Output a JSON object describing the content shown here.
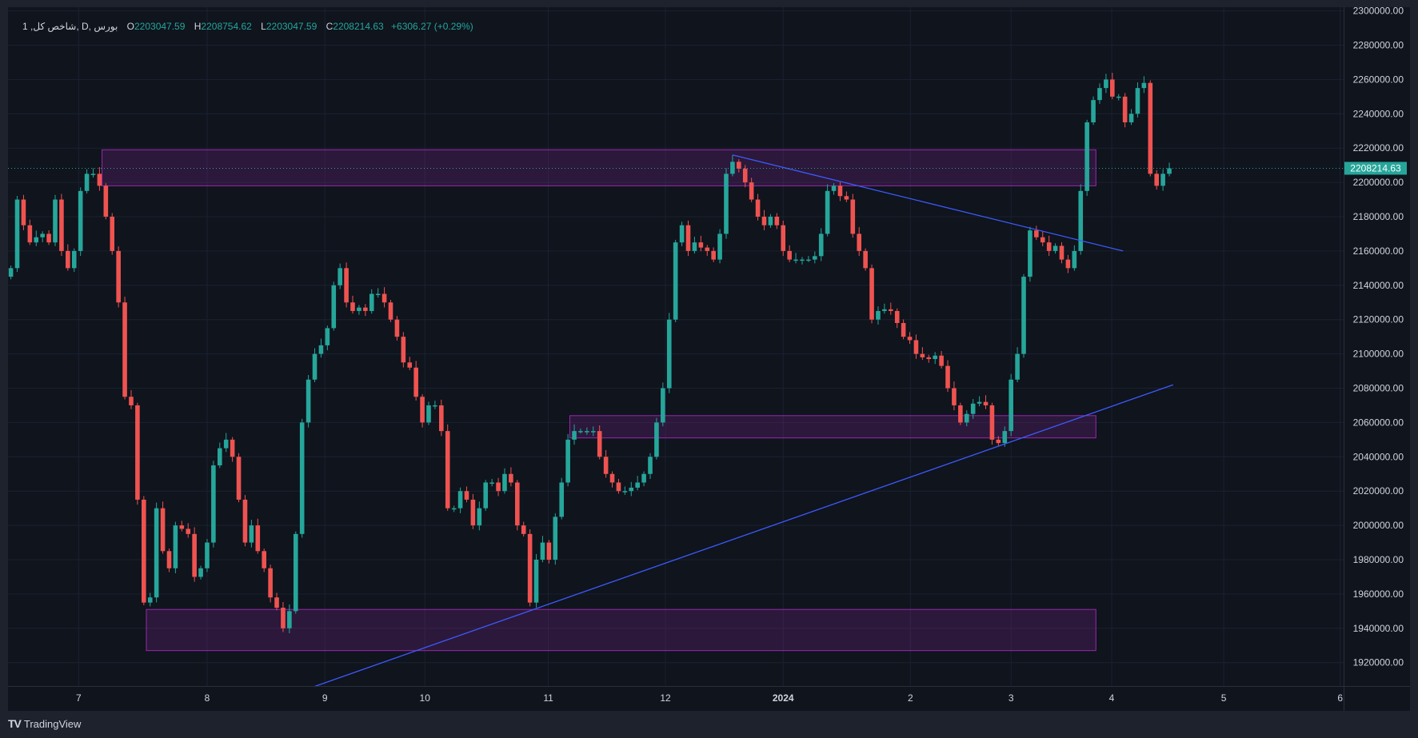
{
  "legend": {
    "symbol": "1 ,شاخص کل, D, بورس",
    "o_label": "O",
    "o": "2203047.59",
    "h_label": "H",
    "h": "2208754.62",
    "l_label": "L",
    "l": "2203047.59",
    "c_label": "C",
    "c": "2208214.63",
    "change": "+6306.27 (+0.29%)"
  },
  "footer": {
    "brand": "TradingView"
  },
  "colors": {
    "up": "#26a69a",
    "down": "#ef5350",
    "zone": "#9c27b0",
    "trend": "#3d5afe",
    "bg": "#0f141d",
    "grid": "#1b2130"
  },
  "chart_data": {
    "type": "candlestick",
    "title": "شاخص کل بورس, 1D",
    "first_open": 2145000,
    "closes": [
      2150,
      2190,
      2175,
      2165,
      2168,
      2170,
      2165,
      2190,
      2160,
      2150,
      2160,
      2195,
      2205,
      2205,
      2198,
      2180,
      2160,
      2130,
      2075,
      2070,
      2015,
      1955,
      1958,
      2010,
      1985,
      1975,
      2000,
      1998,
      1995,
      1970,
      1975,
      1990,
      2035,
      2045,
      2050,
      2040,
      2015,
      1990,
      2000,
      1985,
      1975,
      1958,
      1952,
      1940,
      1950,
      1995,
      2060,
      2085,
      2100,
      2105,
      2115,
      2140,
      2150,
      2130,
      2125,
      2127,
      2125,
      2135,
      2135,
      2130,
      2120,
      2110,
      2095,
      2092,
      2075,
      2060,
      2070,
      2070,
      2055,
      2010,
      2010,
      2020,
      2015,
      2000,
      2010,
      2025,
      2025,
      2020,
      2030,
      2025,
      2000,
      1995,
      1955,
      1980,
      1990,
      1980,
      2005,
      2025,
      2050,
      2055,
      2055,
      2055,
      2055,
      2040,
      2030,
      2025,
      2020,
      2020,
      2022,
      2025,
      2030,
      2040,
      2060,
      2080,
      2120,
      2165,
      2175,
      2160,
      2165,
      2162,
      2160,
      2155,
      2170,
      2205,
      2212,
      2208,
      2200,
      2190,
      2180,
      2175,
      2180,
      2175,
      2160,
      2155,
      2155,
      2155,
      2155,
      2157,
      2170,
      2195,
      2198,
      2192,
      2190,
      2170,
      2160,
      2150,
      2120,
      2125,
      2126,
      2125,
      2118,
      2110,
      2108,
      2100,
      2098,
      2097,
      2099,
      2093,
      2080,
      2070,
      2060,
      2065,
      2071,
      2072,
      2070,
      2050,
      2048,
      2055,
      2085,
      2100,
      2145,
      2172,
      2168,
      2165,
      2160,
      2163,
      2155,
      2150,
      2160,
      2195,
      2235,
      2248,
      2255,
      2260,
      2250,
      2250,
      2235,
      2240,
      2255,
      2258,
      2205,
      2198,
      2205,
      2208.21
    ],
    "value_unit": "thousands",
    "y_ticks": [
      2300000,
      2280000,
      2260000,
      2240000,
      2220000,
      2200000,
      2180000,
      2160000,
      2140000,
      2120000,
      2100000,
      2080000,
      2060000,
      2040000,
      2020000,
      2000000,
      1980000,
      1960000,
      1940000,
      1920000
    ],
    "y_tick_labels": [
      "2300000.00",
      "2280000.00",
      "2260000.00",
      "2240000.00",
      "2220000.00",
      "2200000.00",
      "2180000.00",
      "2160000.00",
      "2140000.00",
      "2120000.00",
      "2100000.00",
      "2080000.00",
      "2060000.00",
      "2040000.00",
      "2020000.00",
      "2000000.00",
      "1980000.00",
      "1960000.00",
      "1940000.00",
      "1920000.00"
    ],
    "ylim": [
      1910000,
      2302000
    ],
    "x_ticks": [
      {
        "label": "7",
        "bar": 10.7
      },
      {
        "label": "8",
        "bar": 31
      },
      {
        "label": "9",
        "bar": 49.6
      },
      {
        "label": "10",
        "bar": 65.4
      },
      {
        "label": "11",
        "bar": 84.9
      },
      {
        "label": "12",
        "bar": 103.4
      },
      {
        "label": "2024",
        "bar": 122
      },
      {
        "label": "2",
        "bar": 142.1
      },
      {
        "label": "3",
        "bar": 158
      },
      {
        "label": "4",
        "bar": 173.9
      },
      {
        "label": "5",
        "bar": 191.6
      },
      {
        "label": "6",
        "bar": 210
      }
    ],
    "last_price_label": "2208214.63",
    "last_price": 2208214.63,
    "zones": [
      {
        "from_bar": 14.4,
        "to_bar": 171.4,
        "top": 2219000,
        "bottom": 2198000
      },
      {
        "from_bar": 88.3,
        "to_bar": 171.4,
        "top": 2064000,
        "bottom": 2051000
      },
      {
        "from_bar": 21.4,
        "to_bar": 171.4,
        "top": 1951000,
        "bottom": 1927000
      }
    ],
    "trendlines": [
      {
        "bar1": 114,
        "p1": 2216000,
        "bar2": 175.7,
        "p2": 2160000
      },
      {
        "bar1": 47.9,
        "p1": 1906000,
        "bar2": 183.6,
        "p2": 2082000
      }
    ]
  }
}
